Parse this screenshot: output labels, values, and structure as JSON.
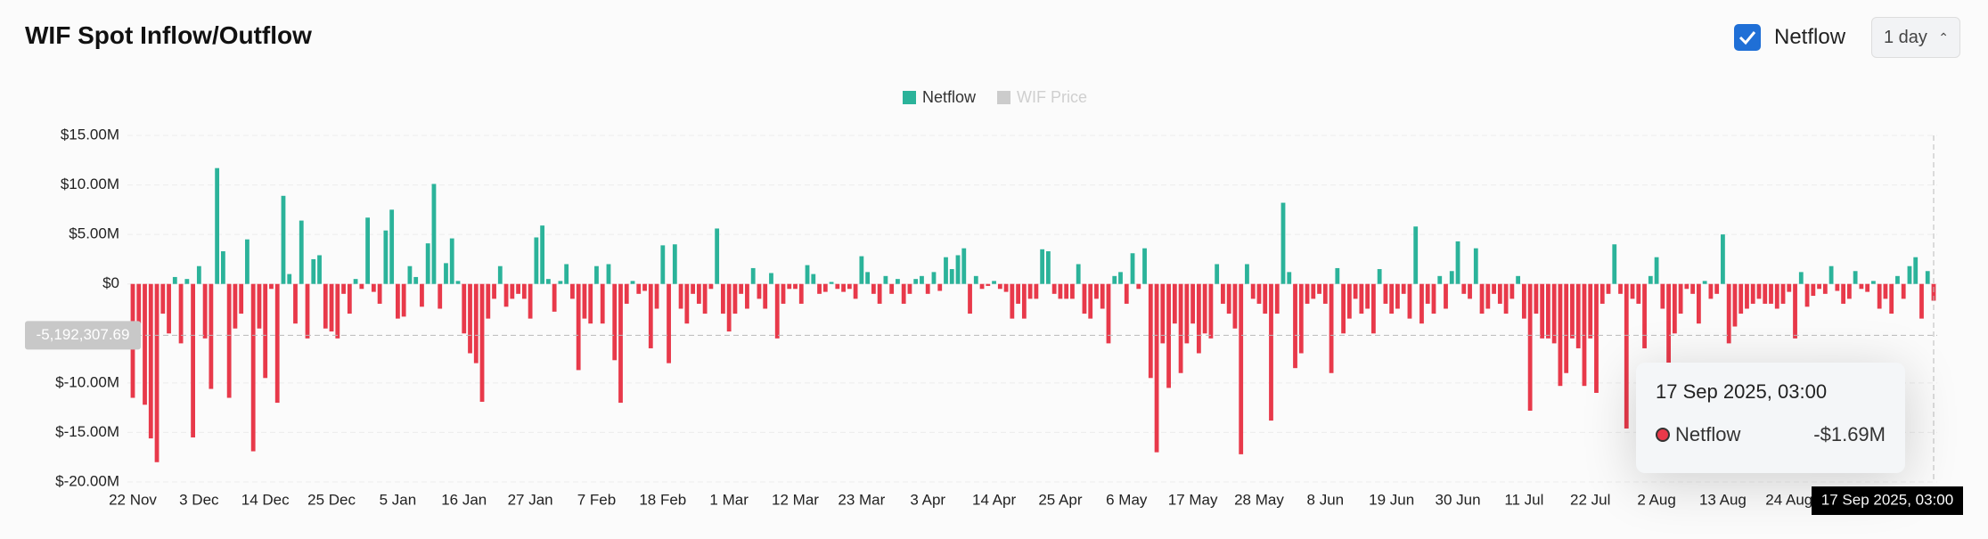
{
  "header": {
    "title": "WIF Spot Inflow/Outflow"
  },
  "controls": {
    "netflow_toggle": "Netflow",
    "interval": "1 day"
  },
  "chart_data": {
    "type": "bar",
    "categories": [
      "22 Nov",
      null,
      null,
      null,
      null,
      null,
      null,
      null,
      null,
      null,
      null,
      "3 Dec",
      null,
      null,
      null,
      null,
      null,
      null,
      null,
      null,
      null,
      null,
      "14 Dec",
      null,
      null,
      null,
      null,
      null,
      null,
      null,
      null,
      null,
      null,
      "25 Dec",
      null,
      null,
      null,
      null,
      null,
      null,
      null,
      null,
      null,
      null,
      "5 Jan",
      null,
      null,
      null,
      null,
      null,
      null,
      null,
      null,
      null,
      null,
      "16 Jan",
      null,
      null,
      null,
      null,
      null,
      null,
      null,
      null,
      null,
      null,
      "27 Jan",
      null,
      null,
      null,
      null,
      null,
      null,
      null,
      null,
      null,
      null,
      "7 Feb",
      null,
      null,
      null,
      null,
      null,
      null,
      null,
      null,
      null,
      null,
      "18 Feb",
      null,
      null,
      null,
      null,
      null,
      null,
      null,
      null,
      null,
      null,
      "1 Mar",
      null,
      null,
      null,
      null,
      null,
      null,
      null,
      null,
      null,
      null,
      "12 Mar",
      null,
      null,
      null,
      null,
      null,
      null,
      null,
      null,
      null,
      null,
      "23 Mar",
      null,
      null,
      null,
      null,
      null,
      null,
      null,
      null,
      null,
      null,
      "3 Apr",
      null,
      null,
      null,
      null,
      null,
      null,
      null,
      null,
      null,
      null,
      "14 Apr",
      null,
      null,
      null,
      null,
      null,
      null,
      null,
      null,
      null,
      null,
      "25 Apr",
      null,
      null,
      null,
      null,
      null,
      null,
      null,
      null,
      null,
      null,
      "6 May",
      null,
      null,
      null,
      null,
      null,
      null,
      null,
      null,
      null,
      null,
      "17 May",
      null,
      null,
      null,
      null,
      null,
      null,
      null,
      null,
      null,
      null,
      "28 May",
      null,
      null,
      null,
      null,
      null,
      null,
      null,
      null,
      null,
      null,
      "8 Jun",
      null,
      null,
      null,
      null,
      null,
      null,
      null,
      null,
      null,
      null,
      "19 Jun",
      null,
      null,
      null,
      null,
      null,
      null,
      null,
      null,
      null,
      null,
      "30 Jun",
      null,
      null,
      null,
      null,
      null,
      null,
      null,
      null,
      null,
      null,
      "11 Jul",
      null,
      null,
      null,
      null,
      null,
      null,
      null,
      null,
      null,
      null,
      "22 Jul",
      null,
      null,
      null,
      null,
      null,
      null,
      null,
      null,
      null,
      null,
      "2 Aug",
      null,
      null,
      null,
      null,
      null,
      null,
      null,
      null,
      null,
      null,
      "13 Aug",
      null,
      null,
      null,
      null,
      null,
      null,
      null,
      null,
      null,
      null,
      "24 Aug",
      null,
      null,
      null,
      null,
      null,
      null,
      null,
      null,
      null,
      null,
      null,
      null,
      null,
      null,
      null,
      null,
      null,
      null,
      null,
      null,
      null,
      null,
      null,
      null
    ],
    "series": [
      {
        "name": "Netflow",
        "color": "#2bb39a",
        "negative_color": "#e8394a",
        "values": [
          -11.5,
          -4,
          -12.2,
          -15.6,
          -18,
          -3,
          -5,
          0.7,
          -6,
          0.5,
          -15.5,
          1.8,
          -5.5,
          -10.6,
          11.7,
          3.3,
          -11.5,
          -4.5,
          -3,
          4.5,
          -16.9,
          -4.5,
          -9.5,
          -0.5,
          -12,
          8.9,
          1,
          -4,
          6.4,
          -5.5,
          2.5,
          2.9,
          -4.5,
          -4.8,
          -5.5,
          -1,
          -3,
          0.5,
          -0.5,
          6.7,
          -0.8,
          -2,
          5.4,
          7.5,
          -3.5,
          -3.3,
          1.8,
          0.7,
          -2.3,
          4.1,
          10.1,
          -2.5,
          2.1,
          4.6,
          0.3,
          -5,
          -7,
          -8,
          -11.9,
          -3.5,
          -1.5,
          1.8,
          -2.3,
          -1.5,
          -1,
          -1.5,
          -3.5,
          4.7,
          5.9,
          0.5,
          -2.8,
          0.3,
          2,
          -1.5,
          -8.7,
          -3.5,
          -4,
          1.8,
          -4,
          2,
          -7.7,
          -12,
          -2,
          0.3,
          -1,
          -0.7,
          -6.5,
          -2.5,
          3.9,
          -8,
          4,
          -2.5,
          -4,
          -1,
          -2,
          -3,
          -0.5,
          5.6,
          -3,
          -4.8,
          -3,
          -1,
          -2.5,
          1.6,
          -1.5,
          -2.5,
          1.1,
          -5.5,
          -2,
          -0.5,
          -0.5,
          -2,
          1.9,
          1,
          -1,
          -0.8,
          0.2,
          -0.5,
          -0.8,
          -0.5,
          -1.5,
          2.8,
          1.2,
          -1,
          -2,
          0.8,
          -1,
          0.5,
          -2,
          -1,
          0.5,
          0.8,
          -1,
          1.2,
          -0.7,
          2.7,
          1.5,
          2.9,
          3.6,
          -3,
          0.8,
          -0.5,
          -0.2,
          0.3,
          -0.5,
          -0.8,
          -3.5,
          -2,
          -3.5,
          -1.5,
          -1.5,
          3.5,
          3.3,
          -1,
          -1.5,
          -1.5,
          -1.5,
          2,
          -3,
          -3.5,
          -1.5,
          -2.5,
          -6,
          0.8,
          1.2,
          -2,
          3.1,
          -0.5,
          3.6,
          -9.5,
          -17,
          -6,
          -10.5,
          -4,
          -9,
          -6,
          -4,
          -7,
          -5,
          -5.5,
          2,
          -2,
          -3,
          -4.5,
          -17.2,
          2,
          -1.5,
          -2,
          -3,
          -13.8,
          -3,
          8.2,
          1.2,
          -8.5,
          -7,
          -2,
          -1.5,
          -1,
          -2,
          -9,
          1.6,
          -5,
          -3.5,
          -1.5,
          -3,
          -2.5,
          -5,
          1.5,
          -2,
          -3,
          -2.5,
          -1,
          -3.5,
          5.8,
          -4,
          -2,
          -3,
          0.8,
          -2.5,
          1.3,
          4.3,
          -1,
          -1.5,
          3.6,
          -3,
          -2.5,
          -1,
          -2,
          -3,
          -1.5,
          0.8,
          -3.5,
          -12.8,
          -3,
          -5.5,
          -5.5,
          -6,
          -10.3,
          -9,
          -5.5,
          -6.5,
          -10.3,
          -5.5,
          -11,
          -2,
          -1,
          4,
          -1,
          -14.6,
          -1.5,
          -2,
          -6.5,
          0.8,
          2.7,
          -2.5,
          -8,
          -5,
          -3,
          -0.5,
          -1,
          -4,
          0.3,
          -1.5,
          -1,
          5,
          -6,
          -4.3,
          -3,
          -2.5,
          -2,
          -1.5,
          -2,
          -2,
          -2.5,
          -2,
          -0.8,
          -5.5,
          1.2,
          -2.3,
          -1.2,
          -0.5,
          -1,
          1.8,
          -0.7,
          -2,
          -1.5,
          1.3,
          -0.5,
          -0.8,
          0.3,
          -2.5,
          -1.5,
          -3,
          0.8,
          -1.5,
          1.8,
          2.7,
          -3.5,
          1.3,
          -1.69
        ]
      },
      {
        "name": "WIF Price",
        "color": "#cccccc",
        "hidden": true
      }
    ],
    "ylim": [
      -20,
      15
    ],
    "yticks": [
      {
        "value": 15,
        "label": "$15.00M"
      },
      {
        "value": 10,
        "label": "$10.00M"
      },
      {
        "value": 5,
        "label": "$5.00M"
      },
      {
        "value": 0,
        "label": "$0"
      },
      {
        "value": -10,
        "label": "$-10.00M"
      },
      {
        "value": -15,
        "label": "$-15.00M"
      },
      {
        "value": -20,
        "label": "$-20.00M"
      }
    ],
    "grid": true,
    "crosshair": {
      "x_label": "17 Sep 2025, 03:00",
      "y": {
        "value": -5.19230769,
        "label": "-5,192,307.69"
      }
    },
    "tooltip": {
      "title": "17 Sep 2025, 03:00",
      "series": "Netflow",
      "value": -1.69,
      "value_label": "-$1.69M"
    }
  }
}
